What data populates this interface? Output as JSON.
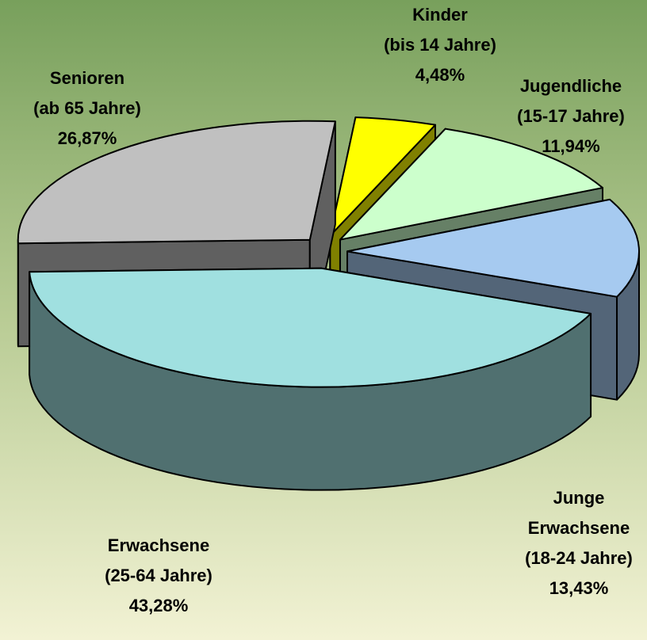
{
  "chart_data": {
    "type": "pie3d",
    "categories": [
      [
        "Kinder",
        "(bis 14 Jahre)"
      ],
      [
        "Jugendliche",
        "(15-17 Jahre)"
      ],
      [
        "Junge",
        "Erwachsene",
        "(18-24 Jahre)"
      ],
      [
        "Erwachsene",
        "(25-64 Jahre)"
      ],
      [
        "Senioren",
        "(ab 65 Jahre)"
      ]
    ],
    "values": [
      4.48,
      11.94,
      13.43,
      43.28,
      26.87
    ],
    "value_labels": [
      "4,48%",
      "11,94%",
      "13,43%",
      "43,28%",
      "26,87%"
    ],
    "colors": [
      "#ffff00",
      "#ccffcc",
      "#a6caf0",
      "#a0e0e0",
      "#c0c0c0"
    ]
  }
}
